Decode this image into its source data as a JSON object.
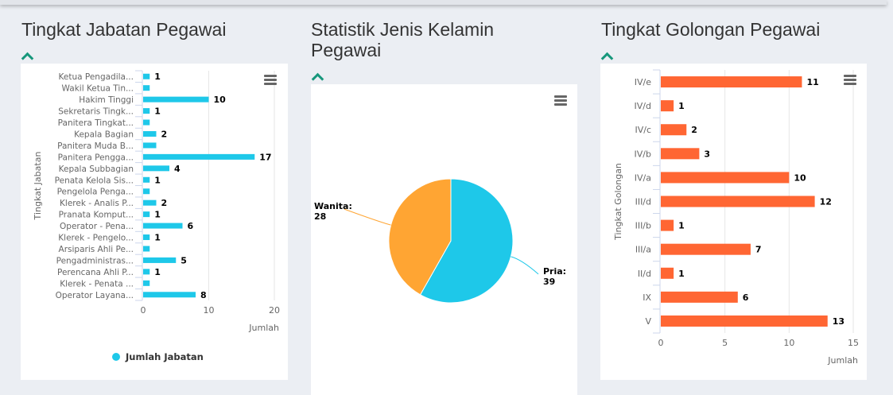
{
  "sections": [
    {
      "title": "Tingkat Jabatan Pegawai"
    },
    {
      "title": "Statistik Jenis Kelamin Pegawai"
    },
    {
      "title": "Tingkat Golongan Pegawai"
    }
  ],
  "chart_data": [
    {
      "type": "bar",
      "orientation": "horizontal",
      "ylabel": "Tingkat Jabatan",
      "xlabel": "Jumlah",
      "xlim": [
        0,
        20
      ],
      "xticks": [
        0,
        10,
        20
      ],
      "color": "#1ec8e9",
      "legend": "Jumlah Jabatan",
      "legend_position": "bottom",
      "categories": [
        "Ketua Pengadila...",
        "Wakil Ketua Tin...",
        "Hakim Tinggi",
        "Sekretaris Tingk...",
        "Panitera Tingkat...",
        "Kepala Bagian",
        "Panitera Muda B...",
        "Panitera Pengga...",
        "Kepala Subbagian",
        "Penata Kelola Sis...",
        "Pengelola Penga...",
        "Klerek - Analis P...",
        "Pranata Komput...",
        "Operator - Pena...",
        "Klerek - Pengelo...",
        "Arsiparis Ahli Pe...",
        "Pengadministras...",
        "Perencana Ahli P...",
        "Klerek - Penata ...",
        "Operator Layana..."
      ],
      "values": [
        1,
        1,
        10,
        1,
        1,
        2,
        2,
        17,
        4,
        1,
        1,
        2,
        1,
        6,
        1,
        1,
        5,
        1,
        1,
        8
      ],
      "labels_shown": [
        true,
        false,
        true,
        true,
        false,
        true,
        false,
        true,
        true,
        true,
        false,
        true,
        true,
        true,
        true,
        false,
        true,
        true,
        false,
        true
      ]
    },
    {
      "type": "pie",
      "color_map": {
        "Pria": "#1ec8e9",
        "Wanita": "#ffa533"
      },
      "slices": [
        {
          "label": "Pria",
          "value": 39
        },
        {
          "label": "Wanita",
          "value": 28
        }
      ]
    },
    {
      "type": "bar",
      "orientation": "horizontal",
      "ylabel": "Tingkat Golongan",
      "xlabel": "Jumlah",
      "xlim": [
        0,
        15
      ],
      "xticks": [
        0,
        5,
        10,
        15
      ],
      "color": "#ff6633",
      "categories": [
        "IV/e",
        "IV/d",
        "IV/c",
        "IV/b",
        "IV/a",
        "III/d",
        "III/b",
        "III/a",
        "II/d",
        "IX",
        "V"
      ],
      "values": [
        11,
        1,
        2,
        3,
        10,
        12,
        1,
        7,
        1,
        6,
        13
      ]
    }
  ]
}
